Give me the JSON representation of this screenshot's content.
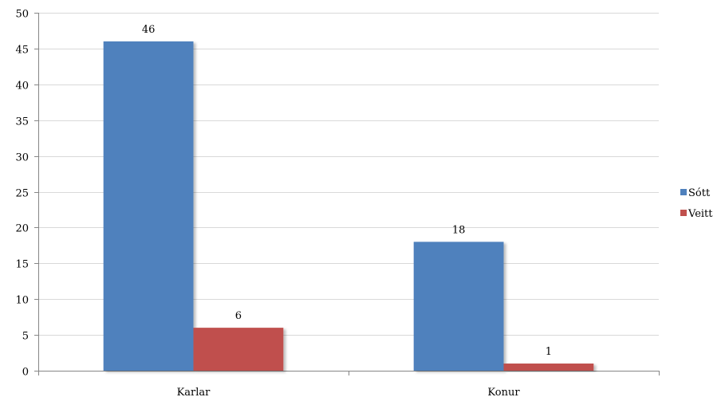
{
  "chart_data": {
    "type": "bar",
    "title": "",
    "xlabel": "",
    "ylabel": "",
    "categories": [
      "Karlar",
      "Konur"
    ],
    "series": [
      {
        "name": "Sótt",
        "values": [
          46,
          18
        ],
        "color": "#4f81bd"
      },
      {
        "name": "Veitt",
        "values": [
          6,
          1
        ],
        "color": "#c0504d"
      }
    ],
    "ylim": [
      0,
      50
    ],
    "yticks": [
      0,
      5,
      10,
      15,
      20,
      25,
      30,
      35,
      40,
      45,
      50
    ],
    "grid": true,
    "legend_position": "right",
    "data_labels": true
  }
}
